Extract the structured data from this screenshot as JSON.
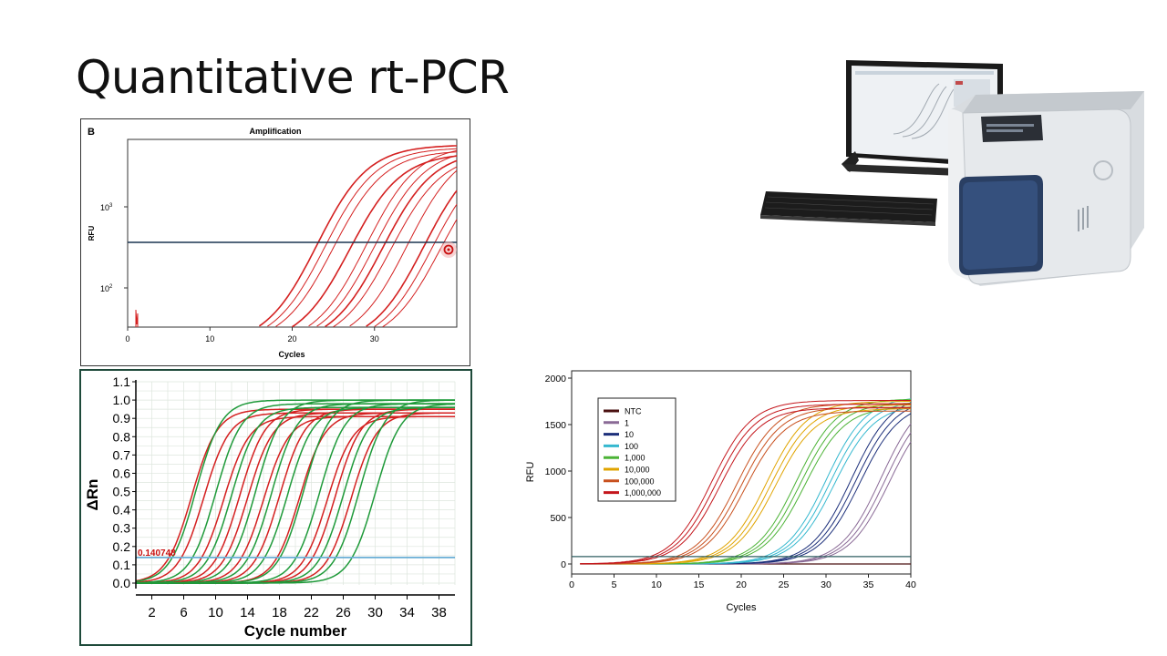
{
  "slide": {
    "title": "Quantitative rt-PCR"
  },
  "colors": {
    "red": "#d42020",
    "green": "#1f9a3a",
    "threshold_a": "#1a3550",
    "threshold_b": "#6aaed6",
    "threshold_c": "#2f5f60"
  },
  "chart_data": [
    {
      "type": "line",
      "panel_label": "B",
      "title": "Amplification",
      "xlabel": "Cycles",
      "ylabel": "RFU",
      "xlim": [
        0,
        40
      ],
      "yscale": "log",
      "xticks": [
        "0",
        "10",
        "20",
        "30"
      ],
      "yticks": [
        {
          "base": "10",
          "exp": "3"
        },
        {
          "base": "10",
          "exp": "2"
        }
      ],
      "series_color": "red",
      "curve_midpoints": [
        23,
        24,
        25,
        27,
        29,
        30,
        31,
        32,
        34,
        36,
        37,
        38
      ],
      "threshold_level": "between 10^2 and 10^3"
    },
    {
      "type": "line",
      "xlabel": "Cycle number",
      "ylabel": "ΔRn",
      "xlim": [
        0,
        40
      ],
      "ylim": [
        0.0,
        1.1
      ],
      "xticks": [
        "2",
        "6",
        "10",
        "14",
        "18",
        "22",
        "26",
        "30",
        "34",
        "38"
      ],
      "yticks": [
        "1.1",
        "1.0",
        "0.9",
        "0.8",
        "0.7",
        "0.6",
        "0.5",
        "0.4",
        "0.3",
        "0.2",
        "0.1",
        "0.0"
      ],
      "threshold": {
        "value": 0.14,
        "label": "0.140748"
      },
      "series": [
        {
          "color": "red",
          "midpoints": [
            7,
            8.5,
            11,
            13,
            14,
            16,
            18,
            20.5,
            24,
            25,
            27
          ],
          "plateau": 0.95
        },
        {
          "color": "green",
          "midpoints": [
            7.5,
            10,
            12,
            15,
            17,
            19,
            21,
            23,
            26,
            28,
            30
          ],
          "plateau": 1.0
        }
      ]
    },
    {
      "type": "line",
      "xlabel": "Cycles",
      "ylabel": "RFU",
      "xlim": [
        0,
        40
      ],
      "ylim": [
        0,
        2000
      ],
      "xticks": [
        "0",
        "5",
        "10",
        "15",
        "20",
        "25",
        "30",
        "35",
        "40"
      ],
      "yticks": [
        "2000",
        "1500",
        "1000",
        "500",
        "0"
      ],
      "threshold": 80,
      "series": [
        {
          "name": "NTC",
          "color": "#4a1010",
          "midpoints": []
        },
        {
          "name": "1",
          "color": "#8a6a96",
          "midpoints": [
            36.5,
            37,
            37.5
          ]
        },
        {
          "name": "10",
          "color": "#1c2f7a",
          "midpoints": [
            33,
            33.5,
            34
          ]
        },
        {
          "name": "100",
          "color": "#35b8cf",
          "midpoints": [
            30,
            30.5,
            31
          ]
        },
        {
          "name": "1,000",
          "color": "#4cb336",
          "midpoints": [
            26.5,
            27,
            27.5
          ]
        },
        {
          "name": "10,000",
          "color": "#e0a400",
          "midpoints": [
            23,
            23.5,
            24
          ]
        },
        {
          "name": "100,000",
          "color": "#c8501e",
          "midpoints": [
            19.5,
            20,
            20.5
          ]
        },
        {
          "name": "1,000,000",
          "color": "#c4161c",
          "midpoints": [
            16.5,
            17,
            17.5
          ]
        }
      ]
    }
  ]
}
